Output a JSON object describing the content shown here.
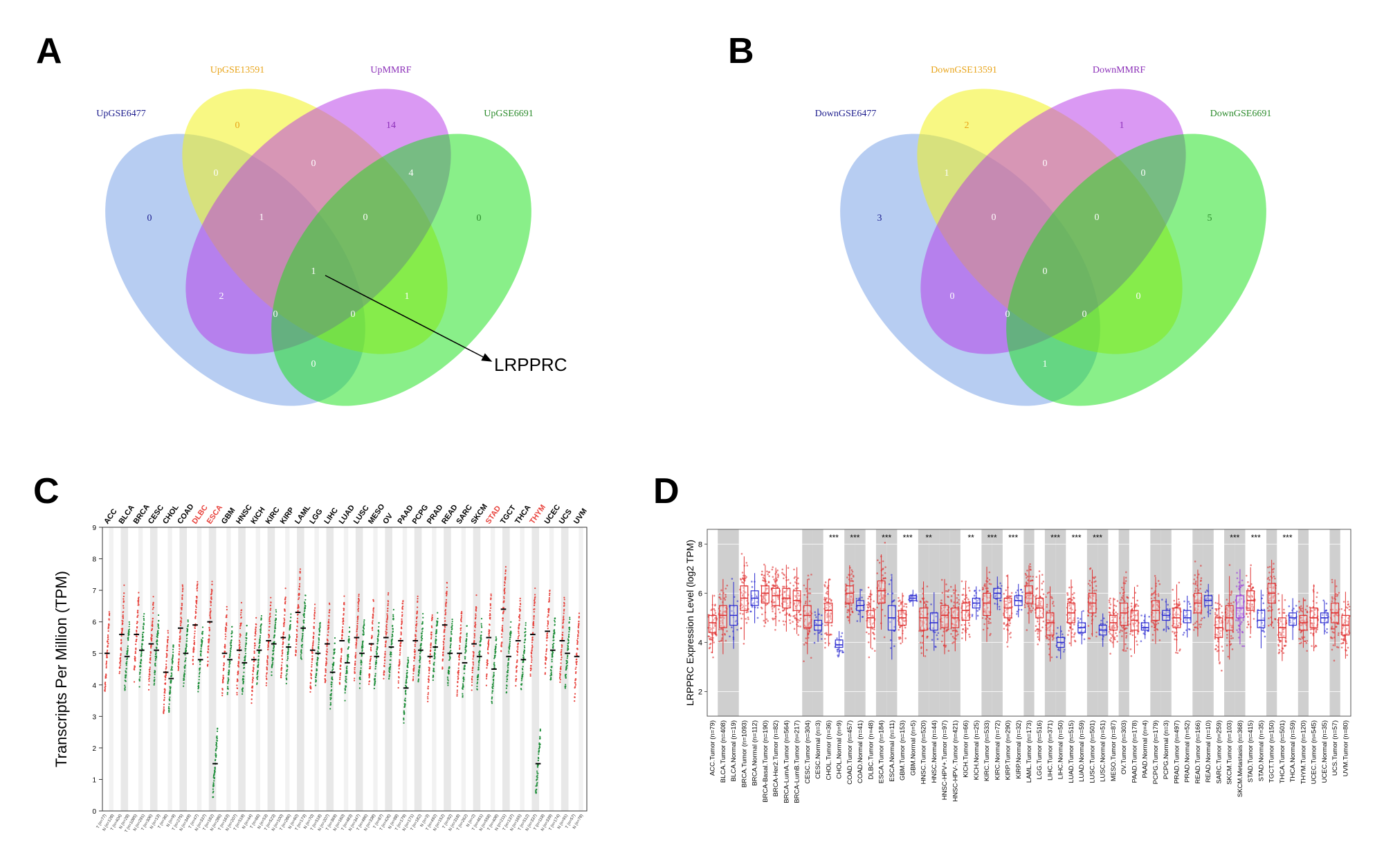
{
  "panels": {
    "a": "A",
    "b": "B",
    "c": "C",
    "d": "D"
  },
  "venn_a": {
    "sets": [
      "UpGSE6477",
      "UpGSE13591",
      "UpMMRF",
      "UpGSE6691"
    ],
    "set_colors": [
      "#1a1a8c",
      "#e8a317",
      "#8b2fb8",
      "#2a8a2a"
    ],
    "regions": {
      "only1": "0",
      "only2": "0",
      "only3": "14",
      "only4": "0",
      "r12": "0",
      "r23": "0",
      "r34": "4",
      "r123": "1",
      "r234": "0",
      "r13": "2",
      "r1234": "1",
      "r24": "1",
      "r134": "0",
      "r124": "0",
      "r14": "0"
    },
    "callout": "LRPPRC"
  },
  "venn_b": {
    "sets": [
      "DownGSE6477",
      "DownGSE13591",
      "DownMMRF",
      "DownGSE6691"
    ],
    "set_colors": [
      "#1a1a8c",
      "#e8a317",
      "#8b2fb8",
      "#2a8a2a"
    ],
    "regions": {
      "only1": "3",
      "only2": "2",
      "only3": "1",
      "only4": "5",
      "r12": "1",
      "r23": "0",
      "r34": "0",
      "r123": "0",
      "r234": "0",
      "r13": "0",
      "r1234": "0",
      "r24": "0",
      "r134": "0",
      "r124": "0",
      "r14": "1"
    }
  },
  "chart_data": [
    {
      "type": "scatter",
      "panel": "C",
      "ylabel": "Transcripts Per Million (TPM)",
      "ylim": [
        0,
        9
      ],
      "yticks": [
        0,
        1,
        2,
        3,
        4,
        5,
        6,
        7,
        8,
        9
      ],
      "highlight_color": "#e8423c",
      "categories": [
        "ACC",
        "BLCA",
        "BRCA",
        "CESC",
        "CHOL",
        "COAD",
        "DLBC",
        "ESCA",
        "GBM",
        "HNSC",
        "KICH",
        "KIRC",
        "KIRP",
        "LAML",
        "LGG",
        "LIHC",
        "LUAD",
        "LUSC",
        "MESO",
        "OV",
        "PAAD",
        "PCPG",
        "PRAD",
        "READ",
        "SARC",
        "SKCM",
        "STAD",
        "TGCT",
        "THCA",
        "THYM",
        "UCEC",
        "UCS",
        "UVM"
      ],
      "highlighted": [
        "DLBC",
        "ESCA",
        "STAD",
        "THYM"
      ],
      "series": [
        {
          "name": "Tumor",
          "color": "#e8423c",
          "median": [
            5.0,
            5.6,
            5.6,
            5.3,
            4.4,
            5.8,
            5.9,
            6.0,
            5.0,
            5.1,
            4.8,
            5.4,
            5.5,
            6.3,
            5.1,
            5.3,
            5.4,
            5.5,
            5.3,
            5.5,
            5.4,
            5.4,
            4.9,
            5.9,
            5.0,
            5.3,
            5.5,
            6.4,
            5.4,
            5.6,
            5.7,
            5.4,
            4.9
          ]
        },
        {
          "name": "Normal",
          "color": "#1f8f3a",
          "median": [
            null,
            4.9,
            5.1,
            5.1,
            4.2,
            5.0,
            4.8,
            1.5,
            4.8,
            4.7,
            5.1,
            5.3,
            5.2,
            5.8,
            5.0,
            4.4,
            4.7,
            5.0,
            4.9,
            5.2,
            3.9,
            5.1,
            5.2,
            5.0,
            4.7,
            4.9,
            4.5,
            4.9,
            4.8,
            1.5,
            5.1,
            5.0,
            null
          ]
        }
      ],
      "x_tick_labels": [
        "T (n=77)",
        "N (n=128)",
        "T (n=404)",
        "N (n=28)",
        "T (n=1085)",
        "N (n=291)",
        "T (n=306)",
        "N (n=13)",
        "T (n=36)",
        "N (n=9)",
        "T (n=275)",
        "N (n=349)",
        "T (n=47)",
        "N (n=337)",
        "T (n=182)",
        "N (n=286)",
        "T (n=163)",
        "N (n=207)",
        "T (n=519)",
        "N (n=44)",
        "T (n=66)",
        "N (n=53)",
        "T (n=523)",
        "N (n=100)",
        "T (n=286)",
        "N (n=60)",
        "T (n=173)",
        "N (n=70)",
        "T (n=518)",
        "N (n=207)",
        "T (n=369)",
        "N (n=160)",
        "T (n=483)",
        "N (n=347)",
        "T (n=486)",
        "N (n=338)",
        "T (n=87)",
        "T (n=426)",
        "N (n=88)",
        "T (n=179)",
        "N (n=171)",
        "T (n=182)",
        "N (n=3)",
        "T (n=492)",
        "N (n=152)",
        "T (n=92)",
        "N (n=318)",
        "T (n=262)",
        "N (n=2)",
        "T (n=461)",
        "N (n=558)",
        "T (n=408)",
        "N (n=211)",
        "T (n=137)",
        "N (n=165)",
        "T (n=512)",
        "N (n=337)",
        "T (n=118)",
        "N (n=339)",
        "T (n=174)",
        "N (n=91)",
        "T (n=57)",
        "N (n=78)"
      ]
    },
    {
      "type": "box",
      "panel": "D",
      "ylabel": "LRPPRC Expression Level (log2 TPM)",
      "ylim": [
        1,
        8.6
      ],
      "yticks": [
        2,
        4,
        6,
        8
      ],
      "tumor_color": "#e03030",
      "normal_color": "#2a2ad0",
      "metastasis_color": "#9a3ad8",
      "categories": [
        "ACC.Tumor (n=79)",
        "BLCA.Tumor (n=408)",
        "BLCA.Normal (n=19)",
        "BRCA.Tumor (n=1093)",
        "BRCA.Normal (n=112)",
        "BRCA-Basal.Tumor (n=190)",
        "BRCA-Her2.Tumor (n=82)",
        "BRCA-LumA.Tumor (n=564)",
        "BRCA-LumB.Tumor (n=217)",
        "CESC.Tumor (n=304)",
        "CESC.Normal (n=3)",
        "CHOL.Tumor (n=36)",
        "CHOL.Normal (n=9)",
        "COAD.Tumor (n=457)",
        "COAD.Normal (n=41)",
        "DLBC.Tumor (n=48)",
        "ESCA.Tumor (n=184)",
        "ESCA.Normal (n=11)",
        "GBM.Tumor (n=153)",
        "GBM.Normal (n=5)",
        "HNSC.Tumor (n=520)",
        "HNSC.Normal (n=44)",
        "HNSC-HPV+.Tumor (n=97)",
        "HNSC-HPV-.Tumor (n=421)",
        "KICH.Tumor (n=66)",
        "KICH.Normal (n=25)",
        "KIRC.Tumor (n=533)",
        "KIRC.Normal (n=72)",
        "KIRP.Tumor (n=290)",
        "KIRP.Normal (n=32)",
        "LAML.Tumor (n=173)",
        "LGG.Tumor (n=516)",
        "LIHC.Tumor (n=371)",
        "LIHC.Normal (n=50)",
        "LUAD.Tumor (n=515)",
        "LUAD.Normal (n=59)",
        "LUSC.Tumor (n=501)",
        "LUSC.Normal (n=51)",
        "MESO.Tumor (n=87)",
        "OV.Tumor (n=303)",
        "PAAD.Tumor (n=178)",
        "PAAD.Normal (n=4)",
        "PCPG.Tumor (n=179)",
        "PCPG.Normal (n=3)",
        "PRAD.Tumor (n=497)",
        "PRAD.Normal (n=52)",
        "READ.Tumor (n=166)",
        "READ.Normal (n=10)",
        "SARC.Tumor (n=259)",
        "SKCM.Tumor (n=103)",
        "SKCM.Metastasis (n=368)",
        "STAD.Tumor (n=415)",
        "STAD.Normal (n=35)",
        "TGCT.Tumor (n=150)",
        "THCA.Tumor (n=501)",
        "THCA.Normal (n=59)",
        "THYM.Tumor (n=120)",
        "UCEC.Tumor (n=545)",
        "UCEC.Normal (n=35)",
        "UCS.Tumor (n=57)",
        "UVM.Tumor (n=80)"
      ],
      "kind": [
        "T",
        "T",
        "N",
        "T",
        "N",
        "T",
        "T",
        "T",
        "T",
        "T",
        "N",
        "T",
        "N",
        "T",
        "N",
        "T",
        "T",
        "N",
        "T",
        "N",
        "T",
        "N",
        "T",
        "T",
        "T",
        "N",
        "T",
        "N",
        "T",
        "N",
        "T",
        "T",
        "T",
        "N",
        "T",
        "N",
        "T",
        "N",
        "T",
        "T",
        "T",
        "N",
        "T",
        "N",
        "T",
        "N",
        "T",
        "N",
        "T",
        "T",
        "M",
        "T",
        "N",
        "T",
        "T",
        "N",
        "T",
        "T",
        "N",
        "T",
        "T"
      ],
      "median": [
        4.8,
        5.1,
        5.1,
        5.8,
        5.8,
        6.0,
        5.9,
        5.8,
        5.7,
        5.1,
        4.7,
        5.3,
        3.9,
        6.0,
        5.5,
        5.0,
        6.1,
        5.0,
        5.0,
        5.8,
        5.0,
        4.8,
        5.1,
        5.0,
        5.3,
        5.6,
        5.6,
        6.0,
        5.4,
        5.7,
        6.0,
        5.4,
        4.8,
        4.0,
        5.2,
        4.6,
        5.6,
        4.5,
        4.8,
        5.2,
        4.9,
        4.6,
        5.3,
        5.1,
        5.0,
        5.0,
        5.6,
        5.7,
        4.6,
        5.0,
        5.4,
        5.7,
        4.9,
        6.0,
        4.6,
        5.0,
        4.8,
        5.0,
        5.0,
        5.2,
        4.7
      ],
      "q1": [
        4.4,
        4.6,
        4.7,
        5.3,
        5.5,
        5.6,
        5.5,
        5.4,
        5.3,
        4.6,
        4.5,
        4.8,
        3.8,
        5.6,
        5.3,
        4.6,
        5.6,
        4.5,
        4.7,
        5.7,
        4.5,
        4.5,
        4.6,
        4.6,
        4.9,
        5.4,
        5.1,
        5.8,
        5.0,
        5.5,
        5.6,
        5.0,
        4.3,
        3.8,
        4.8,
        4.4,
        5.2,
        4.3,
        4.5,
        4.7,
        4.5,
        4.5,
        4.9,
        4.9,
        4.6,
        4.8,
        5.2,
        5.5,
        4.2,
        4.5,
        5.0,
        5.3,
        4.6,
        5.6,
        4.2,
        4.7,
        4.5,
        4.6,
        4.8,
        4.8,
        4.3
      ],
      "q3": [
        5.1,
        5.5,
        5.5,
        6.3,
        6.1,
        6.3,
        6.2,
        6.2,
        6.1,
        5.5,
        4.9,
        5.6,
        4.1,
        6.3,
        5.7,
        5.3,
        6.5,
        5.5,
        5.3,
        5.9,
        5.4,
        5.2,
        5.5,
        5.4,
        5.6,
        5.8,
        6.0,
        6.2,
        5.8,
        5.9,
        6.3,
        5.8,
        5.2,
        4.2,
        5.6,
        4.8,
        6.0,
        4.7,
        5.1,
        5.6,
        5.3,
        4.8,
        5.7,
        5.3,
        5.4,
        5.3,
        6.0,
        5.9,
        5.0,
        5.5,
        5.9,
        6.1,
        5.3,
        6.4,
        5.0,
        5.2,
        5.1,
        5.4,
        5.2,
        5.6,
        5.1
      ],
      "significance": {
        "CHOL.Tumor (n=36)": "***",
        "COAD.Tumor (n=457)": "***",
        "ESCA.Tumor (n=184)": "***",
        "GBM.Tumor (n=153)": "***",
        "HNSC.Tumor (n=520)": "**",
        "KICH.Tumor (n=66)": "**",
        "KIRC.Tumor (n=533)": "***",
        "KIRP.Tumor (n=290)": "***",
        "LIHC.Tumor (n=371)": "***",
        "LUAD.Tumor (n=515)": "***",
        "LUSC.Tumor (n=501)": "***",
        "SKCM.Tumor (n=103)": "***",
        "STAD.Tumor (n=415)": "***",
        "THCA.Tumor (n=501)": "***"
      }
    }
  ]
}
